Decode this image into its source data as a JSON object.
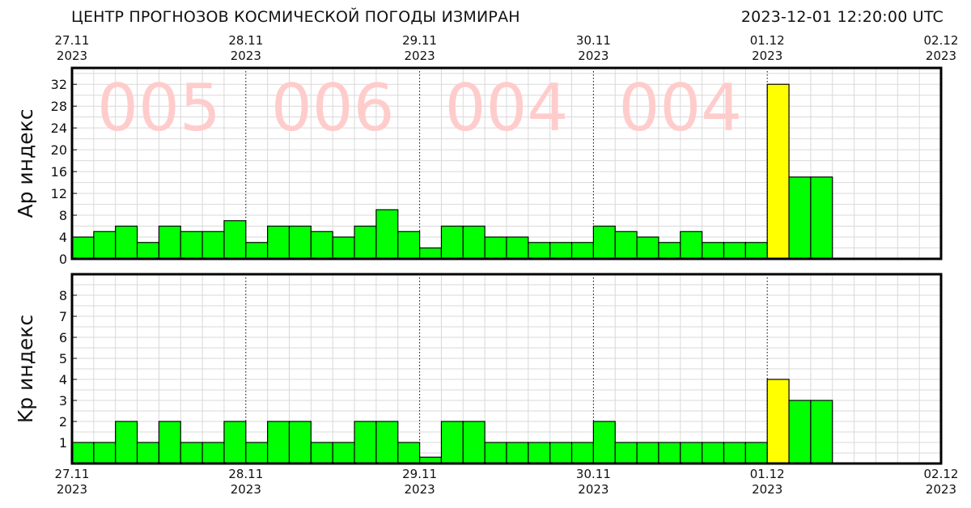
{
  "header": {
    "title": "ЦЕНТР ПРОГНОЗОВ КОСМИЧЕСКОЙ ПОГОДЫ ИЗМИРАН",
    "timestamp": "2023-12-01 12:20:00 UTC"
  },
  "colors": {
    "observed": "#00ff00",
    "current": "#ffff00",
    "daily_label": "#ffcccc",
    "frame": "#000000",
    "grid": "#d9d9d9"
  },
  "chart_data": [
    {
      "type": "bar",
      "ylabel": "Ap индекс",
      "ylim": [
        0,
        35
      ],
      "yticks": [
        0,
        4,
        8,
        12,
        16,
        20,
        24,
        28,
        32
      ],
      "x_date_ticks": [
        {
          "day": "27.11",
          "year": "2023"
        },
        {
          "day": "28.11",
          "year": "2023"
        },
        {
          "day": "29.11",
          "year": "2023"
        },
        {
          "day": "30.11",
          "year": "2023"
        },
        {
          "day": "01.12",
          "year": "2023"
        },
        {
          "day": "02.12",
          "year": "2023"
        }
      ],
      "interval_hours": 3,
      "values": [
        4,
        5,
        6,
        3,
        6,
        5,
        5,
        7,
        3,
        6,
        6,
        5,
        4,
        6,
        9,
        5,
        2,
        6,
        6,
        4,
        4,
        3,
        3,
        3,
        6,
        5,
        4,
        3,
        5,
        3,
        3,
        3,
        32,
        15,
        15
      ],
      "highlight_index": 32,
      "daily_labels": [
        "005",
        "006",
        "004",
        "004"
      ],
      "grid": true
    },
    {
      "type": "bar",
      "ylabel": "Kp индекс",
      "ylim": [
        0,
        9
      ],
      "yticks": [
        1,
        2,
        3,
        4,
        5,
        6,
        7,
        8
      ],
      "x_date_ticks": [
        {
          "day": "27.11",
          "year": "2023"
        },
        {
          "day": "28.11",
          "year": "2023"
        },
        {
          "day": "29.11",
          "year": "2023"
        },
        {
          "day": "30.11",
          "year": "2023"
        },
        {
          "day": "01.12",
          "year": "2023"
        },
        {
          "day": "02.12",
          "year": "2023"
        }
      ],
      "interval_hours": 3,
      "values": [
        1,
        1,
        2,
        1,
        2,
        1,
        1,
        2,
        1,
        2,
        2,
        1,
        1,
        2,
        2,
        1,
        0.3,
        2,
        2,
        1,
        1,
        1,
        1,
        1,
        2,
        1,
        1,
        1,
        1,
        1,
        1,
        1,
        4,
        3,
        3
      ],
      "highlight_index": 32,
      "grid": true
    }
  ]
}
